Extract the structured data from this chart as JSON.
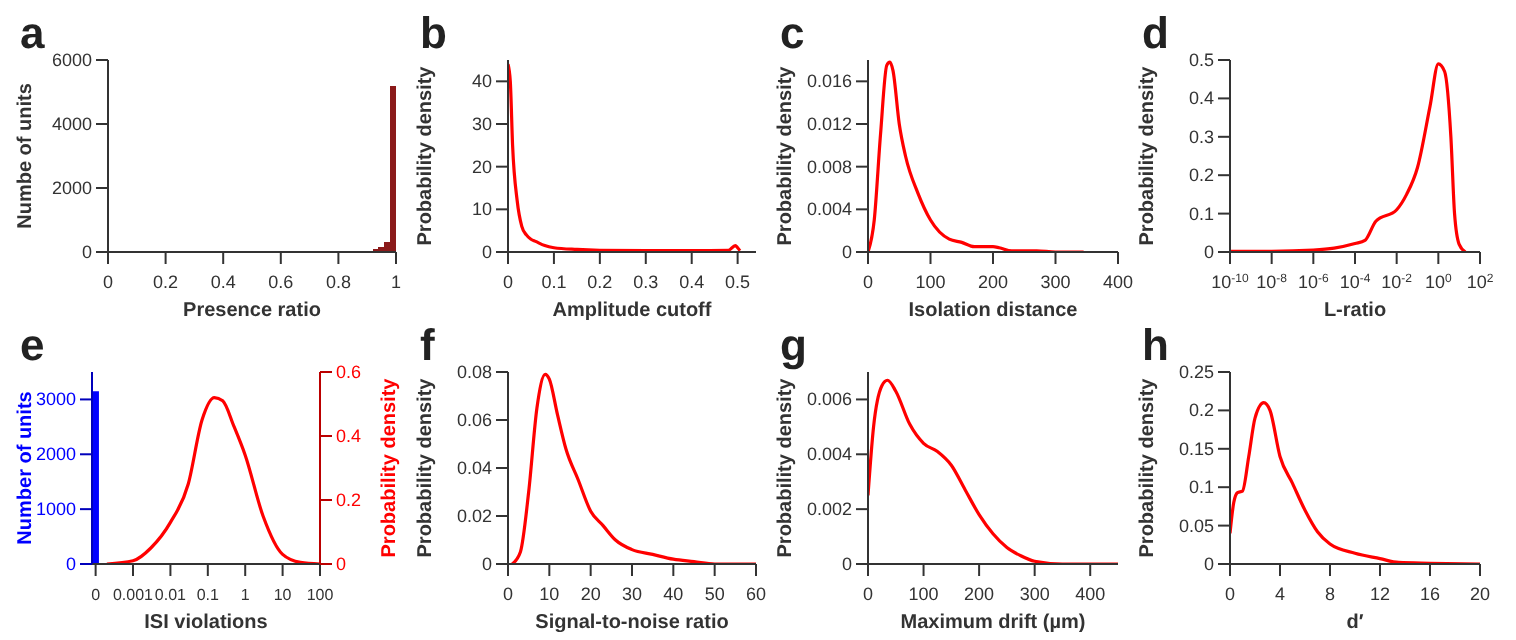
{
  "chart_data": [
    {
      "type": "histogram",
      "title": "a",
      "xlabel": "Presence ratio",
      "ylabel": "Numbe of units",
      "xlim": [
        0,
        1
      ],
      "xticks": [
        0,
        0.2,
        0.4,
        0.6,
        0.8,
        1
      ],
      "ylim": [
        0,
        6000
      ],
      "yticks": [
        0,
        2000,
        4000,
        6000
      ],
      "color": "#8b1a1a",
      "bins": [
        0.88,
        0.9,
        0.92,
        0.94,
        0.96,
        0.98,
        1.0
      ],
      "values": [
        20,
        40,
        80,
        150,
        300,
        5200
      ]
    },
    {
      "type": "line",
      "title": "b",
      "xlabel": "Amplitude cutoff",
      "ylabel": "Probability density",
      "xlim": [
        0,
        0.54
      ],
      "xticks": [
        0,
        0.1,
        0.2,
        0.3,
        0.4,
        0.5
      ],
      "ylim": [
        0,
        45
      ],
      "yticks": [
        0,
        10,
        20,
        30,
        40
      ],
      "series": [
        {
          "color": "#ff0000",
          "x": [
            0,
            0.005,
            0.01,
            0.02,
            0.03,
            0.04,
            0.05,
            0.06,
            0.08,
            0.1,
            0.15,
            0.2,
            0.3,
            0.4,
            0.48,
            0.495,
            0.5,
            0.505
          ],
          "values": [
            44,
            40,
            25,
            12,
            6,
            4,
            3,
            2.5,
            1.5,
            1,
            0.6,
            0.4,
            0.3,
            0.3,
            0.4,
            1.5,
            1,
            0.3
          ]
        }
      ]
    },
    {
      "type": "line",
      "title": "c",
      "xlabel": "Isolation distance",
      "ylabel": "Probability density",
      "xlim": [
        0,
        400
      ],
      "xticks": [
        0,
        100,
        200,
        300,
        400
      ],
      "ylim": [
        0,
        0.018
      ],
      "yticks": [
        0,
        0.004,
        0.008,
        0.012,
        0.016
      ],
      "series": [
        {
          "color": "#ff0000",
          "x": [
            0,
            10,
            20,
            30,
            35,
            40,
            50,
            60,
            80,
            100,
            130,
            150,
            170,
            200,
            210,
            230,
            270,
            300,
            345
          ],
          "values": [
            0,
            0.003,
            0.011,
            0.0175,
            0.0178,
            0.017,
            0.012,
            0.009,
            0.0055,
            0.003,
            0.0012,
            0.0009,
            0.0005,
            0.0005,
            0.0004,
            0.0001,
            0.0001,
            0,
            0
          ]
        }
      ]
    },
    {
      "type": "line",
      "title": "d",
      "xlabel": "L-ratio",
      "ylabel": "Probability density",
      "log": "x",
      "xlim": [
        1e-10,
        100
      ],
      "xticks": [
        {
          "value": 1e-10,
          "label": "10$^{-10}$"
        },
        {
          "value": 1e-08,
          "label": "10$^{-8}$"
        },
        {
          "value": 1e-06,
          "label": "10$^{-6}$"
        },
        {
          "value": 0.0001,
          "label": "10$^{-4}$"
        },
        {
          "value": 0.01,
          "label": "10$^{-2}$"
        },
        {
          "value": 1,
          "label": "10$^{0}$"
        },
        {
          "value": 100,
          "label": "10$^{2}$"
        }
      ],
      "ylim": [
        0,
        0.5
      ],
      "yticks": [
        0,
        0.1,
        0.2,
        0.3,
        0.4,
        0.5
      ],
      "series": [
        {
          "color": "#ff0000",
          "x": [
            1e-10,
            1e-08,
            1e-06,
            1e-05,
            0.0001,
            0.0003,
            0.001,
            0.01,
            0.03,
            0.1,
            0.4,
            1,
            2,
            4,
            6,
            10,
            20
          ],
          "values": [
            0.002,
            0.002,
            0.005,
            0.01,
            0.022,
            0.03,
            0.08,
            0.11,
            0.15,
            0.22,
            0.38,
            0.49,
            0.47,
            0.3,
            0.1,
            0.02,
            0
          ]
        }
      ]
    },
    {
      "type": "bar",
      "title": "e",
      "xlabel": "ISI violations",
      "ylabel": "Number of units",
      "y2label": "Probability density",
      "log": "x",
      "xlim": [
        8e-05,
        100
      ],
      "xticks": [
        {
          "value": 0.0001,
          "label": "0"
        },
        0.001,
        0.01,
        0.1,
        1,
        10,
        100
      ],
      "ylim": [
        0,
        3500
      ],
      "yticks": [
        0,
        1000,
        2000,
        3000
      ],
      "y2lim": [
        0,
        0.6
      ],
      "y2ticks": [
        0,
        0.2,
        0.4,
        0.6
      ],
      "series": [
        {
          "color": "#0000ff",
          "x": [
            0.0001
          ],
          "values": [
            3150
          ]
        },
        {
          "type": "line",
          "axis": "y2",
          "color": "#ff0000",
          "x": [
            0.0002,
            0.001,
            0.003,
            0.01,
            0.03,
            0.07,
            0.15,
            0.25,
            0.5,
            1,
            3,
            10,
            30,
            100
          ],
          "values": [
            0,
            0.01,
            0.05,
            0.13,
            0.25,
            0.45,
            0.52,
            0.51,
            0.43,
            0.34,
            0.15,
            0.03,
            0.005,
            0
          ]
        }
      ]
    },
    {
      "type": "line",
      "title": "f",
      "xlabel": "Signal-to-noise ratio",
      "ylabel": "Probability density",
      "xlim": [
        0,
        60
      ],
      "xticks": [
        0,
        10,
        20,
        30,
        40,
        50,
        60
      ],
      "ylim": [
        0,
        0.08
      ],
      "yticks": [
        0,
        0.02,
        0.04,
        0.06,
        0.08
      ],
      "series": [
        {
          "color": "#ff0000",
          "x": [
            1,
            3,
            5,
            7,
            9,
            10,
            12,
            14,
            17,
            20,
            23,
            26,
            30,
            35,
            40,
            45,
            50,
            60
          ],
          "values": [
            0,
            0.005,
            0.03,
            0.065,
            0.079,
            0.077,
            0.062,
            0.048,
            0.035,
            0.022,
            0.016,
            0.01,
            0.006,
            0.004,
            0.002,
            0.001,
            0,
            0
          ]
        }
      ]
    },
    {
      "type": "line",
      "title": "g",
      "xlabel": "Maximum drift (µm)",
      "ylabel": "Probability density",
      "xlim": [
        0,
        450
      ],
      "xticks": [
        0,
        100,
        200,
        300,
        400
      ],
      "ylim": [
        0,
        0.007
      ],
      "yticks": [
        0,
        0.002,
        0.004,
        0.006
      ],
      "series": [
        {
          "color": "#ff0000",
          "x": [
            0,
            10,
            25,
            35,
            50,
            75,
            100,
            125,
            150,
            175,
            200,
            225,
            250,
            275,
            300,
            350,
            450
          ],
          "values": [
            0.0025,
            0.005,
            0.0065,
            0.0067,
            0.0063,
            0.0051,
            0.0044,
            0.0041,
            0.0036,
            0.0027,
            0.0018,
            0.0011,
            0.0006,
            0.0003,
            0.0001,
            0,
            0
          ]
        }
      ]
    },
    {
      "type": "line",
      "title": "h",
      "xlabel": "d′",
      "ylabel": "Probability density",
      "xlim": [
        0,
        20
      ],
      "xticks": [
        0,
        4,
        8,
        12,
        16,
        20
      ],
      "ylim": [
        0,
        0.25
      ],
      "yticks": [
        0,
        0.05,
        0.1,
        0.15,
        0.2,
        0.25
      ],
      "series": [
        {
          "color": "#ff0000",
          "x": [
            0,
            0.3,
            0.6,
            1,
            1.5,
            2,
            2.7,
            3.2,
            4,
            5,
            6,
            7,
            8,
            10,
            12,
            13.5,
            16,
            20
          ],
          "values": [
            0.04,
            0.08,
            0.093,
            0.095,
            0.14,
            0.19,
            0.21,
            0.2,
            0.14,
            0.105,
            0.07,
            0.042,
            0.026,
            0.014,
            0.007,
            0.002,
            0.001,
            0
          ]
        }
      ]
    }
  ]
}
